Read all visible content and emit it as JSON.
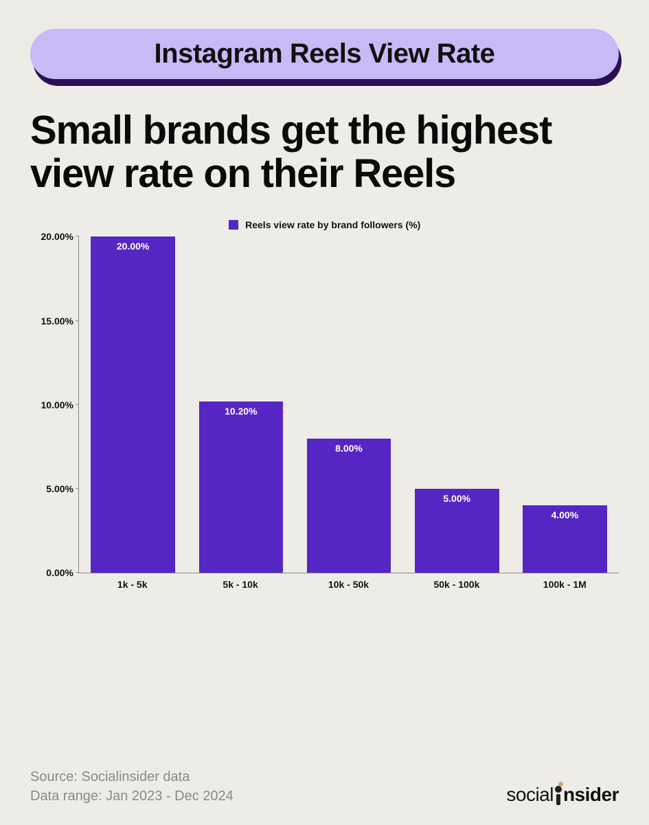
{
  "title_pill": "Instagram Reels View Rate",
  "headline": "Small brands get the highest view rate on their Reels",
  "chart": {
    "type": "bar",
    "legend_label": "Reels view rate by brand followers (%)",
    "categories": [
      "1k - 5k",
      "5k - 10k",
      "10k - 50k",
      "50k - 100k",
      "100k - 1M"
    ],
    "values": [
      20.0,
      10.2,
      8.0,
      5.0,
      4.0
    ],
    "value_labels": [
      "20.00%",
      "10.20%",
      "8.00%",
      "5.00%",
      "4.00%"
    ],
    "bar_color": "#5626c4",
    "ylim": [
      0,
      20
    ],
    "ytick_step": 5,
    "ytick_labels": [
      "0.00%",
      "5.00%",
      "10.00%",
      "15.00%",
      "20.00%"
    ],
    "axis_color": "#888888",
    "label_color": "#111111",
    "bar_label_color": "#ffffff",
    "background_color": "#edece7",
    "label_fontsize": 14,
    "bar_width": 0.78
  },
  "footer": {
    "source": "Source: Socialinsider data",
    "data_range": "Data range: Jan 2023 - Dec 2024",
    "brand_prefix": "social",
    "brand_suffix": "nsider",
    "brand_dot_main": "#222222",
    "brand_dot_small": "#d4a574"
  },
  "colors": {
    "bg": "#edece7",
    "pill_bg": "#c8b9f7",
    "pill_shadow": "#2b0f55",
    "text_primary": "#0a0a0a",
    "text_muted": "#888888"
  }
}
